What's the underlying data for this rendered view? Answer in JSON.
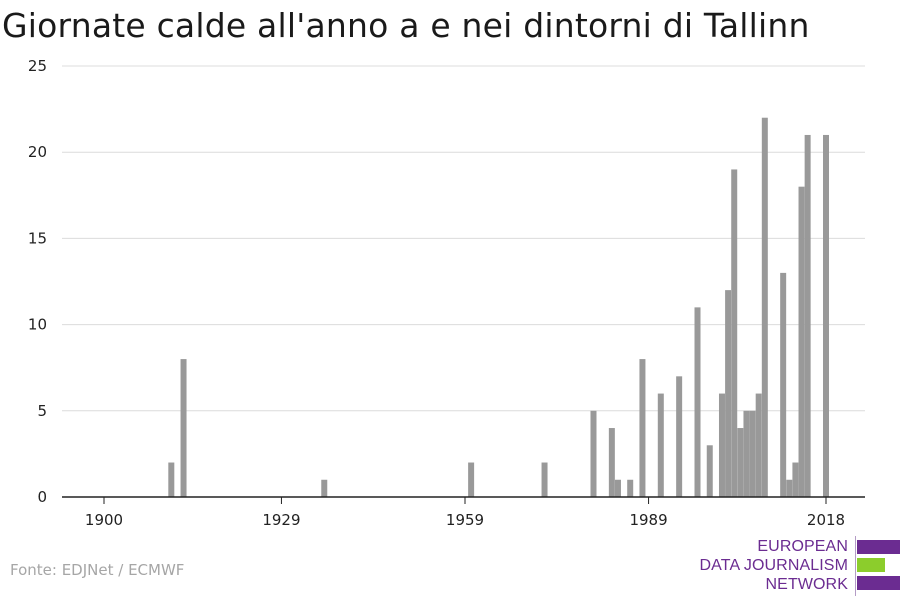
{
  "chart_data": {
    "type": "bar",
    "title": "Giornate calde all'anno a e nei dintorni di Tallinn",
    "xlabel": "",
    "ylabel": "",
    "xlim": [
      1894,
      2022
    ],
    "ylim": [
      0,
      25
    ],
    "x_ticks": [
      1900,
      1929,
      1959,
      1989,
      2018
    ],
    "y_ticks": [
      0,
      5,
      10,
      15,
      20,
      25
    ],
    "grid": true,
    "bar_color": "#999999",
    "x": [
      1911,
      1913,
      1936,
      1960,
      1972,
      1980,
      1983,
      1984,
      1986,
      1988,
      1991,
      1994,
      1997,
      1999,
      2001,
      2002,
      2003,
      2004,
      2005,
      2006,
      2007,
      2008,
      2011,
      2012,
      2013,
      2014,
      2015,
      2018
    ],
    "values": [
      2,
      8,
      1,
      2,
      2,
      5,
      4,
      1,
      1,
      8,
      6,
      7,
      11,
      3,
      6,
      12,
      19,
      4,
      5,
      5,
      6,
      22,
      13,
      1,
      2,
      18,
      21,
      21
    ]
  },
  "source": "Fonte: EDJNet / ECMWF",
  "logo": {
    "line1": "EUROPEAN",
    "line2": "DATA JOURNALISM",
    "line3": "NETWORK",
    "colors": {
      "purple": "#6b2c91",
      "green": "#8ccd2c"
    }
  }
}
